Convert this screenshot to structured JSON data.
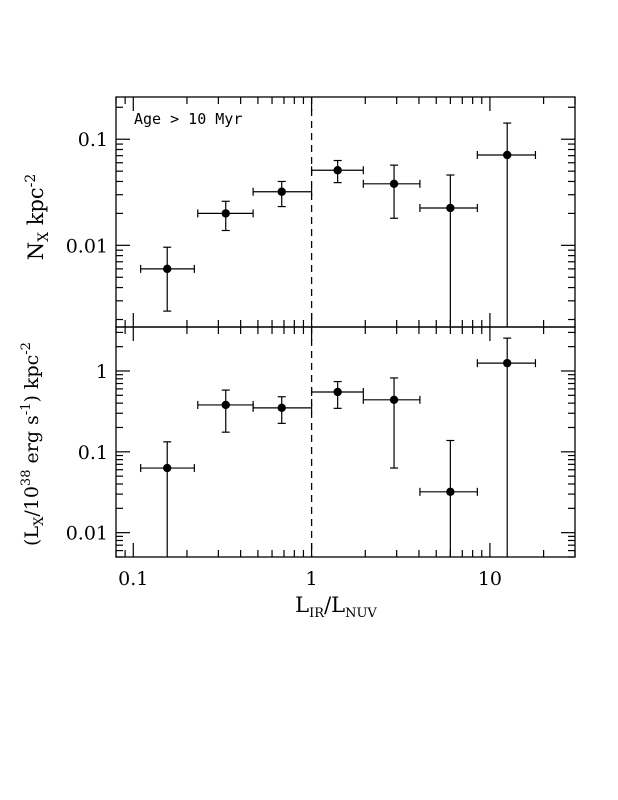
{
  "chart_data": [
    {
      "type": "scatter",
      "panel": "top",
      "annotation": "Age > 10 Myr",
      "ylabel": {
        "base": "N",
        "sub": "X",
        "unit": "kpc",
        "exp": "-2"
      },
      "xscale": "log",
      "yscale": "log",
      "xlim": [
        0.08,
        30
      ],
      "ylim": [
        0.0017,
        0.25
      ],
      "ytick_labels": [
        {
          "value": 0.01,
          "label": "0.01"
        },
        {
          "value": 0.1,
          "label": "0.1"
        }
      ],
      "reference_line_x": 1,
      "points": [
        {
          "x": 0.155,
          "xlo": 0.11,
          "xhi": 0.22,
          "y": 0.006,
          "ylo": 0.0024,
          "yhi": 0.0096
        },
        {
          "x": 0.33,
          "xlo": 0.23,
          "xhi": 0.47,
          "y": 0.02,
          "ylo": 0.0138,
          "yhi": 0.026
        },
        {
          "x": 0.68,
          "xlo": 0.47,
          "xhi": 1.0,
          "y": 0.032,
          "ylo": 0.0232,
          "yhi": 0.04
        },
        {
          "x": 1.4,
          "xlo": 1.0,
          "xhi": 1.95,
          "y": 0.051,
          "ylo": 0.039,
          "yhi": 0.063
        },
        {
          "x": 2.9,
          "xlo": 1.95,
          "xhi": 4.05,
          "y": 0.038,
          "ylo": 0.018,
          "yhi": 0.057
        },
        {
          "x": 6.0,
          "xlo": 4.05,
          "xhi": 8.5,
          "y": 0.0225,
          "ylo": 0.0017,
          "yhi": 0.046
        },
        {
          "x": 12.5,
          "xlo": 8.5,
          "xhi": 18.0,
          "y": 0.071,
          "ylo": 0.0017,
          "yhi": 0.142
        }
      ]
    },
    {
      "type": "scatter",
      "panel": "bottom",
      "ylabel": {
        "prefix": "(L",
        "sub": "X",
        "mid": "/10",
        "exp1": "38",
        "unit_text": " erg s",
        "exp2": "-1",
        "suffix": ") kpc",
        "exp3": "-2"
      },
      "xlabel": {
        "a": "L",
        "a_sub": "IR",
        "slash": "/L",
        "b_sub": "NUV"
      },
      "xscale": "log",
      "yscale": "log",
      "xlim": [
        0.08,
        30
      ],
      "ylim": [
        0.005,
        3.5
      ],
      "xtick_labels": [
        {
          "value": 0.1,
          "label": "0.1"
        },
        {
          "value": 1,
          "label": "1"
        },
        {
          "value": 10,
          "label": "10"
        }
      ],
      "ytick_labels": [
        {
          "value": 0.01,
          "label": "0.01"
        },
        {
          "value": 0.1,
          "label": "0.1"
        },
        {
          "value": 1,
          "label": "1"
        }
      ],
      "reference_line_x": 1,
      "points": [
        {
          "x": 0.155,
          "xlo": 0.11,
          "xhi": 0.22,
          "y": 0.063,
          "ylo": 0.005,
          "yhi": 0.133
        },
        {
          "x": 0.33,
          "xlo": 0.23,
          "xhi": 0.47,
          "y": 0.38,
          "ylo": 0.175,
          "yhi": 0.58
        },
        {
          "x": 0.68,
          "xlo": 0.47,
          "xhi": 1.0,
          "y": 0.35,
          "ylo": 0.225,
          "yhi": 0.48
        },
        {
          "x": 1.4,
          "xlo": 1.0,
          "xhi": 1.95,
          "y": 0.55,
          "ylo": 0.345,
          "yhi": 0.74
        },
        {
          "x": 2.9,
          "xlo": 1.95,
          "xhi": 4.05,
          "y": 0.44,
          "ylo": 0.063,
          "yhi": 0.82
        },
        {
          "x": 6.0,
          "xlo": 4.05,
          "xhi": 8.5,
          "y": 0.032,
          "ylo": 0.005,
          "yhi": 0.138
        },
        {
          "x": 12.5,
          "xlo": 8.5,
          "xhi": 18.0,
          "y": 1.25,
          "ylo": 0.005,
          "yhi": 2.55
        }
      ]
    }
  ]
}
